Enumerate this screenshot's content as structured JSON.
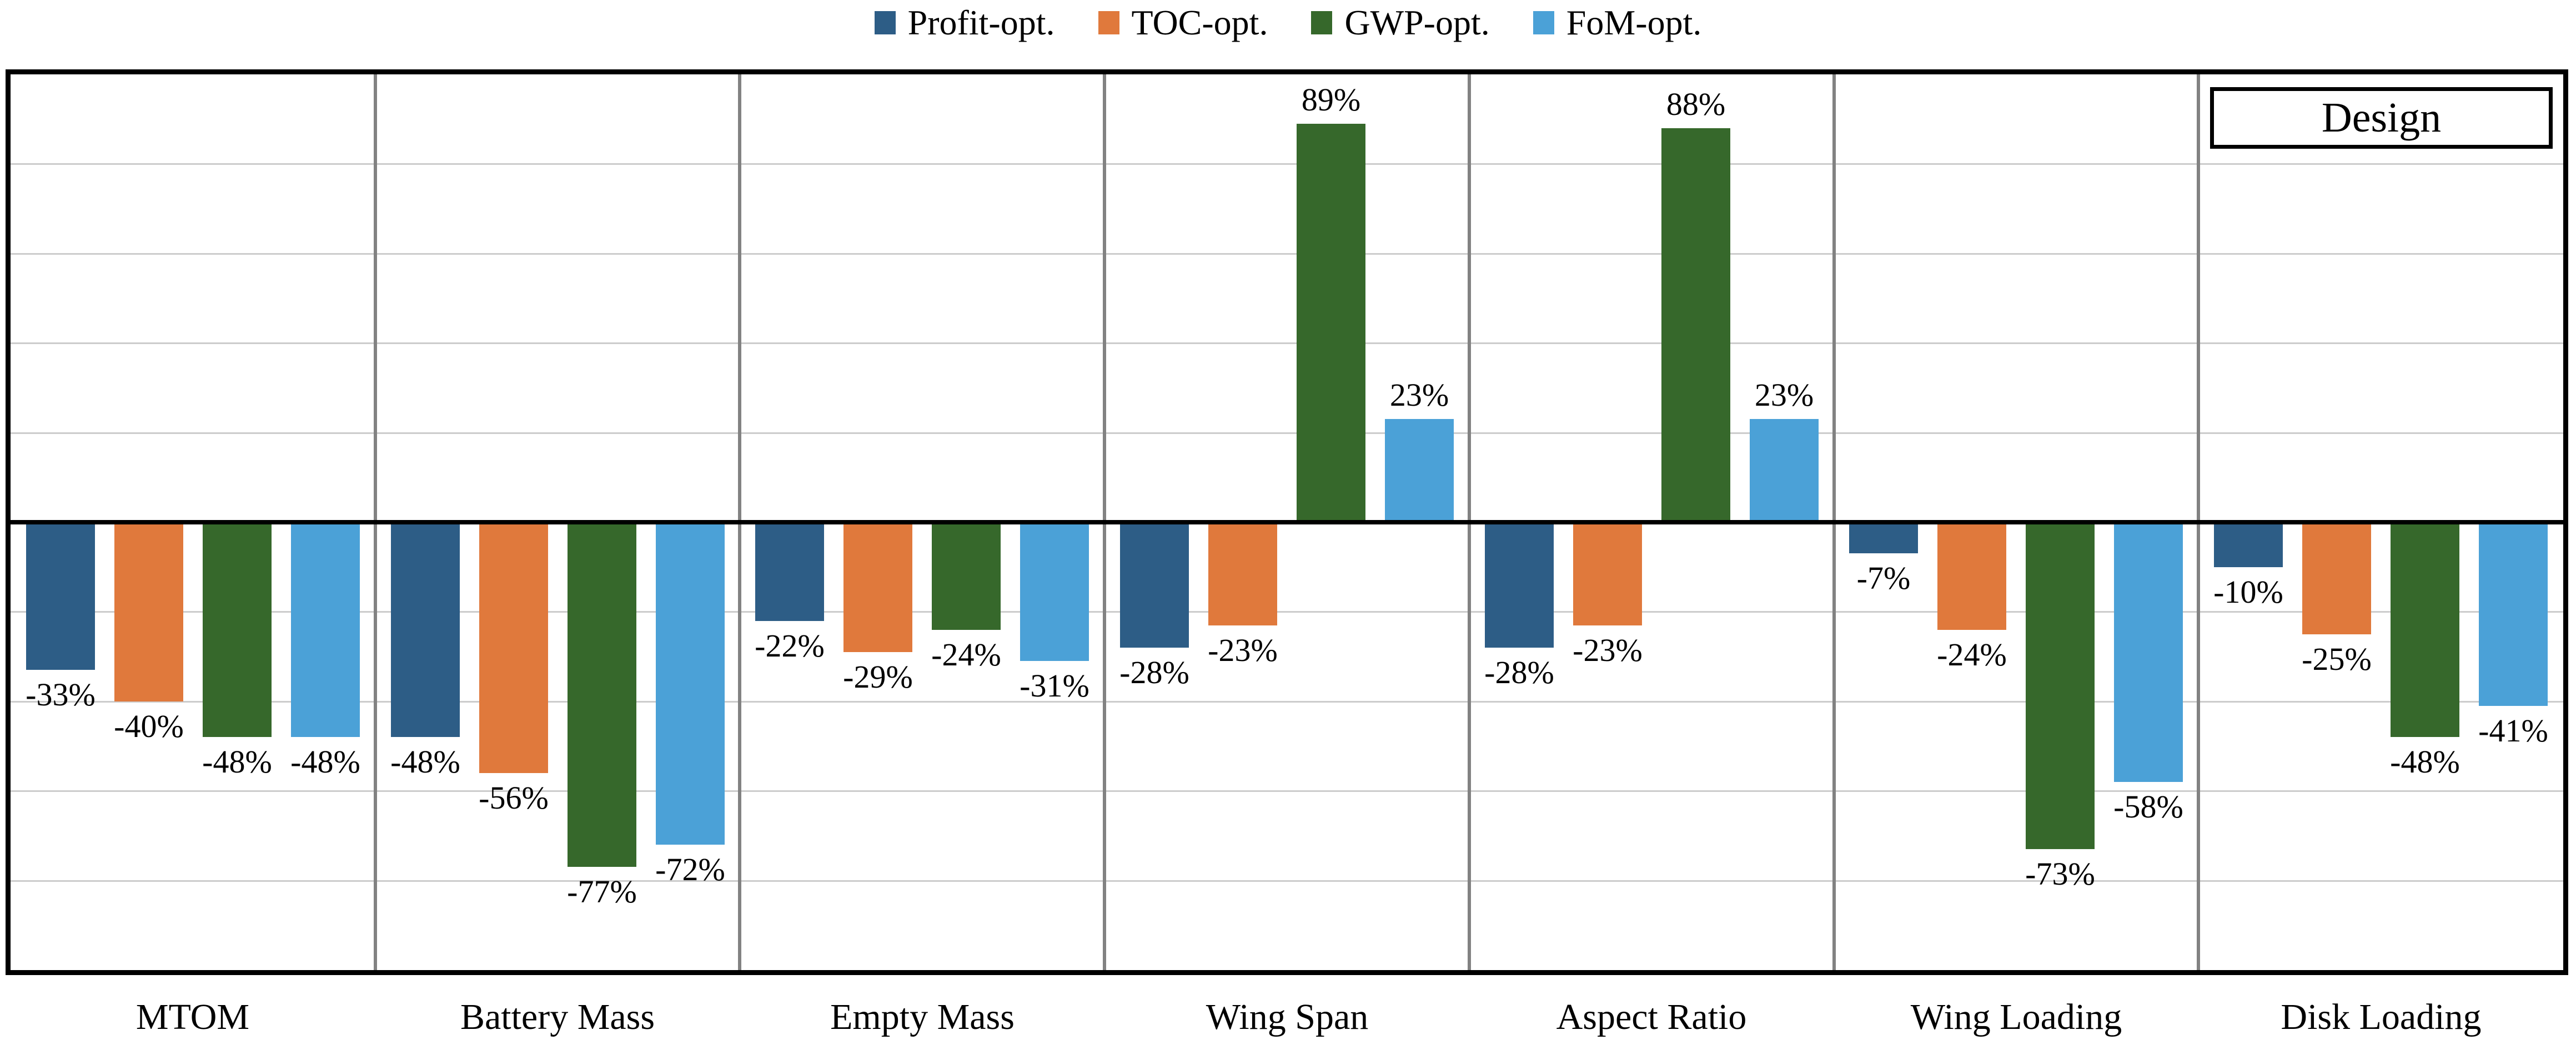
{
  "design_label": "Design",
  "legend": {
    "items": [
      {
        "label": "Profit-opt.",
        "color": "#2D5D86"
      },
      {
        "label": "TOC-opt.",
        "color": "#E0793C"
      },
      {
        "label": "GWP-opt.",
        "color": "#36682B"
      },
      {
        "label": "FoM-opt.",
        "color": "#4BA1D7"
      }
    ]
  },
  "chart_data": {
    "type": "bar",
    "title": "",
    "xlabel": "",
    "ylabel": "",
    "categories": [
      "MTOM",
      "Battery Mass",
      "Empty Mass",
      "Wing Span",
      "Aspect Ratio",
      "Wing Loading",
      "Disk Loading"
    ],
    "series": [
      {
        "name": "Profit-opt.",
        "color": "#2D5D86",
        "values": [
          -33,
          -48,
          -22,
          -28,
          -28,
          -7,
          -10
        ]
      },
      {
        "name": "TOC-opt.",
        "color": "#E0793C",
        "values": [
          -40,
          -56,
          -29,
          -23,
          -23,
          -24,
          -25
        ]
      },
      {
        "name": "GWP-opt.",
        "color": "#36682B",
        "values": [
          -48,
          -77,
          -24,
          89,
          88,
          -73,
          -48
        ]
      },
      {
        "name": "FoM-opt.",
        "color": "#4BA1D7",
        "values": [
          -48,
          -72,
          -31,
          23,
          23,
          -58,
          -41
        ]
      }
    ],
    "value_suffix": "%",
    "data_labels": true,
    "ylim": [
      -100,
      100
    ],
    "gridline_interval": 20,
    "grid": true,
    "legend_position": "top",
    "annotation": "Design",
    "axis_ticks_shown": false
  },
  "style": {
    "gridline_color": "#cccccc",
    "divider_color": "#828282",
    "axis_color": "#000000",
    "background": "#ffffff",
    "text_color": "#000000"
  }
}
